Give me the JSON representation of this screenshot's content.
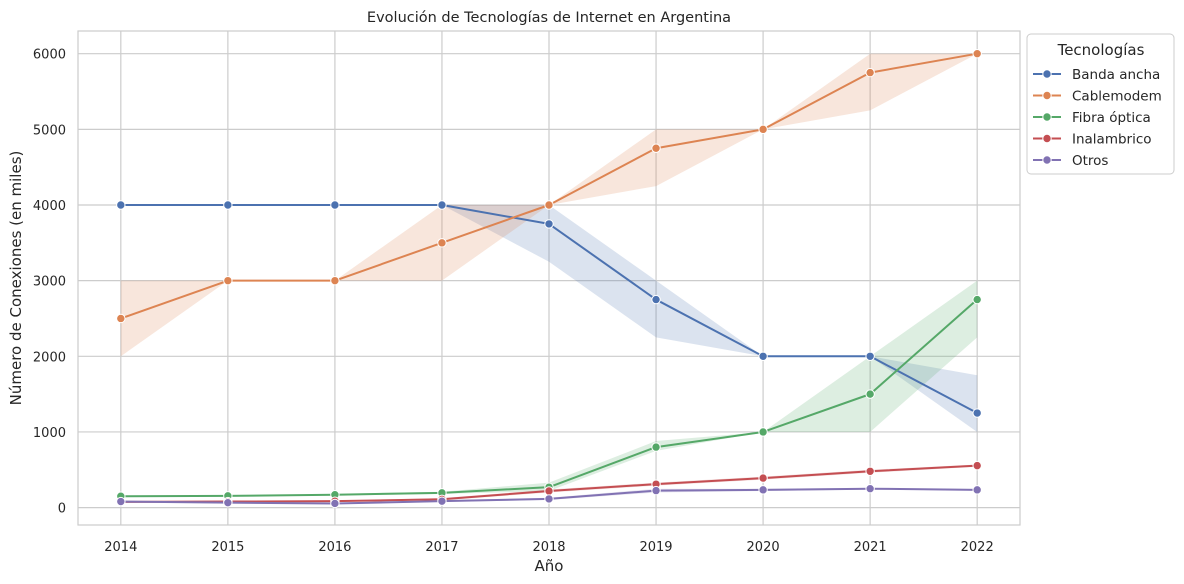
{
  "chart_data": {
    "type": "line",
    "title": "Evolución de Tecnologías de Internet en Argentina",
    "xlabel": "Año",
    "ylabel": "Número de Conexiones (en miles)",
    "x": [
      2014,
      2015,
      2016,
      2017,
      2018,
      2019,
      2020,
      2021,
      2022
    ],
    "x_ticks": [
      "2014",
      "2015",
      "2016",
      "2017",
      "2018",
      "2019",
      "2020",
      "2021",
      "2022"
    ],
    "ylim": [
      -230,
      6300
    ],
    "y_ticks": [
      0,
      1000,
      2000,
      3000,
      4000,
      5000,
      6000
    ],
    "y_tick_labels": [
      "0",
      "1000",
      "2000",
      "3000",
      "4000",
      "5000",
      "6000"
    ],
    "grid": true,
    "legend": {
      "title": "Tecnologías",
      "placement": "outside top-right"
    },
    "series": [
      {
        "name": "Banda ancha",
        "color": "#4c72b0",
        "values": [
          4000,
          4000,
          4000,
          4000,
          3750,
          2750,
          2000,
          2000,
          1250
        ],
        "ci_low": [
          4000,
          4000,
          4000,
          4000,
          3250,
          2250,
          2000,
          2000,
          1000
        ],
        "ci_high": [
          4000,
          4000,
          4000,
          4000,
          4000,
          3000,
          2000,
          2000,
          1750
        ]
      },
      {
        "name": "Cablemodem",
        "color": "#dd8452",
        "values": [
          2500,
          3000,
          3000,
          3500,
          4000,
          4750,
          5000,
          5750,
          6000
        ],
        "ci_low": [
          2000,
          3000,
          3000,
          3000,
          4000,
          4250,
          5000,
          5250,
          6000
        ],
        "ci_high": [
          3000,
          3000,
          3000,
          4000,
          4000,
          5000,
          5000,
          6000,
          6000
        ]
      },
      {
        "name": "Fibra óptica",
        "color": "#55a868",
        "values": [
          150,
          155,
          170,
          195,
          270,
          800,
          1000,
          1500,
          2750
        ],
        "ci_low": [
          150,
          150,
          160,
          180,
          220,
          750,
          1000,
          1000,
          2250
        ],
        "ci_high": [
          150,
          160,
          180,
          210,
          330,
          880,
          1000,
          2000,
          3000
        ]
      },
      {
        "name": "Inalambrico",
        "color": "#c44e52",
        "values": [
          75,
          80,
          85,
          110,
          220,
          310,
          390,
          480,
          555
        ],
        "ci_low": [
          70,
          75,
          80,
          95,
          200,
          290,
          370,
          460,
          540
        ],
        "ci_high": [
          80,
          85,
          90,
          125,
          240,
          330,
          410,
          500,
          570
        ]
      },
      {
        "name": "Otros",
        "color": "#8172b3",
        "values": [
          80,
          65,
          55,
          85,
          115,
          225,
          235,
          250,
          235
        ],
        "ci_low": [
          75,
          55,
          45,
          75,
          100,
          200,
          220,
          240,
          225
        ],
        "ci_high": [
          85,
          75,
          65,
          95,
          130,
          250,
          250,
          260,
          245
        ]
      }
    ]
  }
}
